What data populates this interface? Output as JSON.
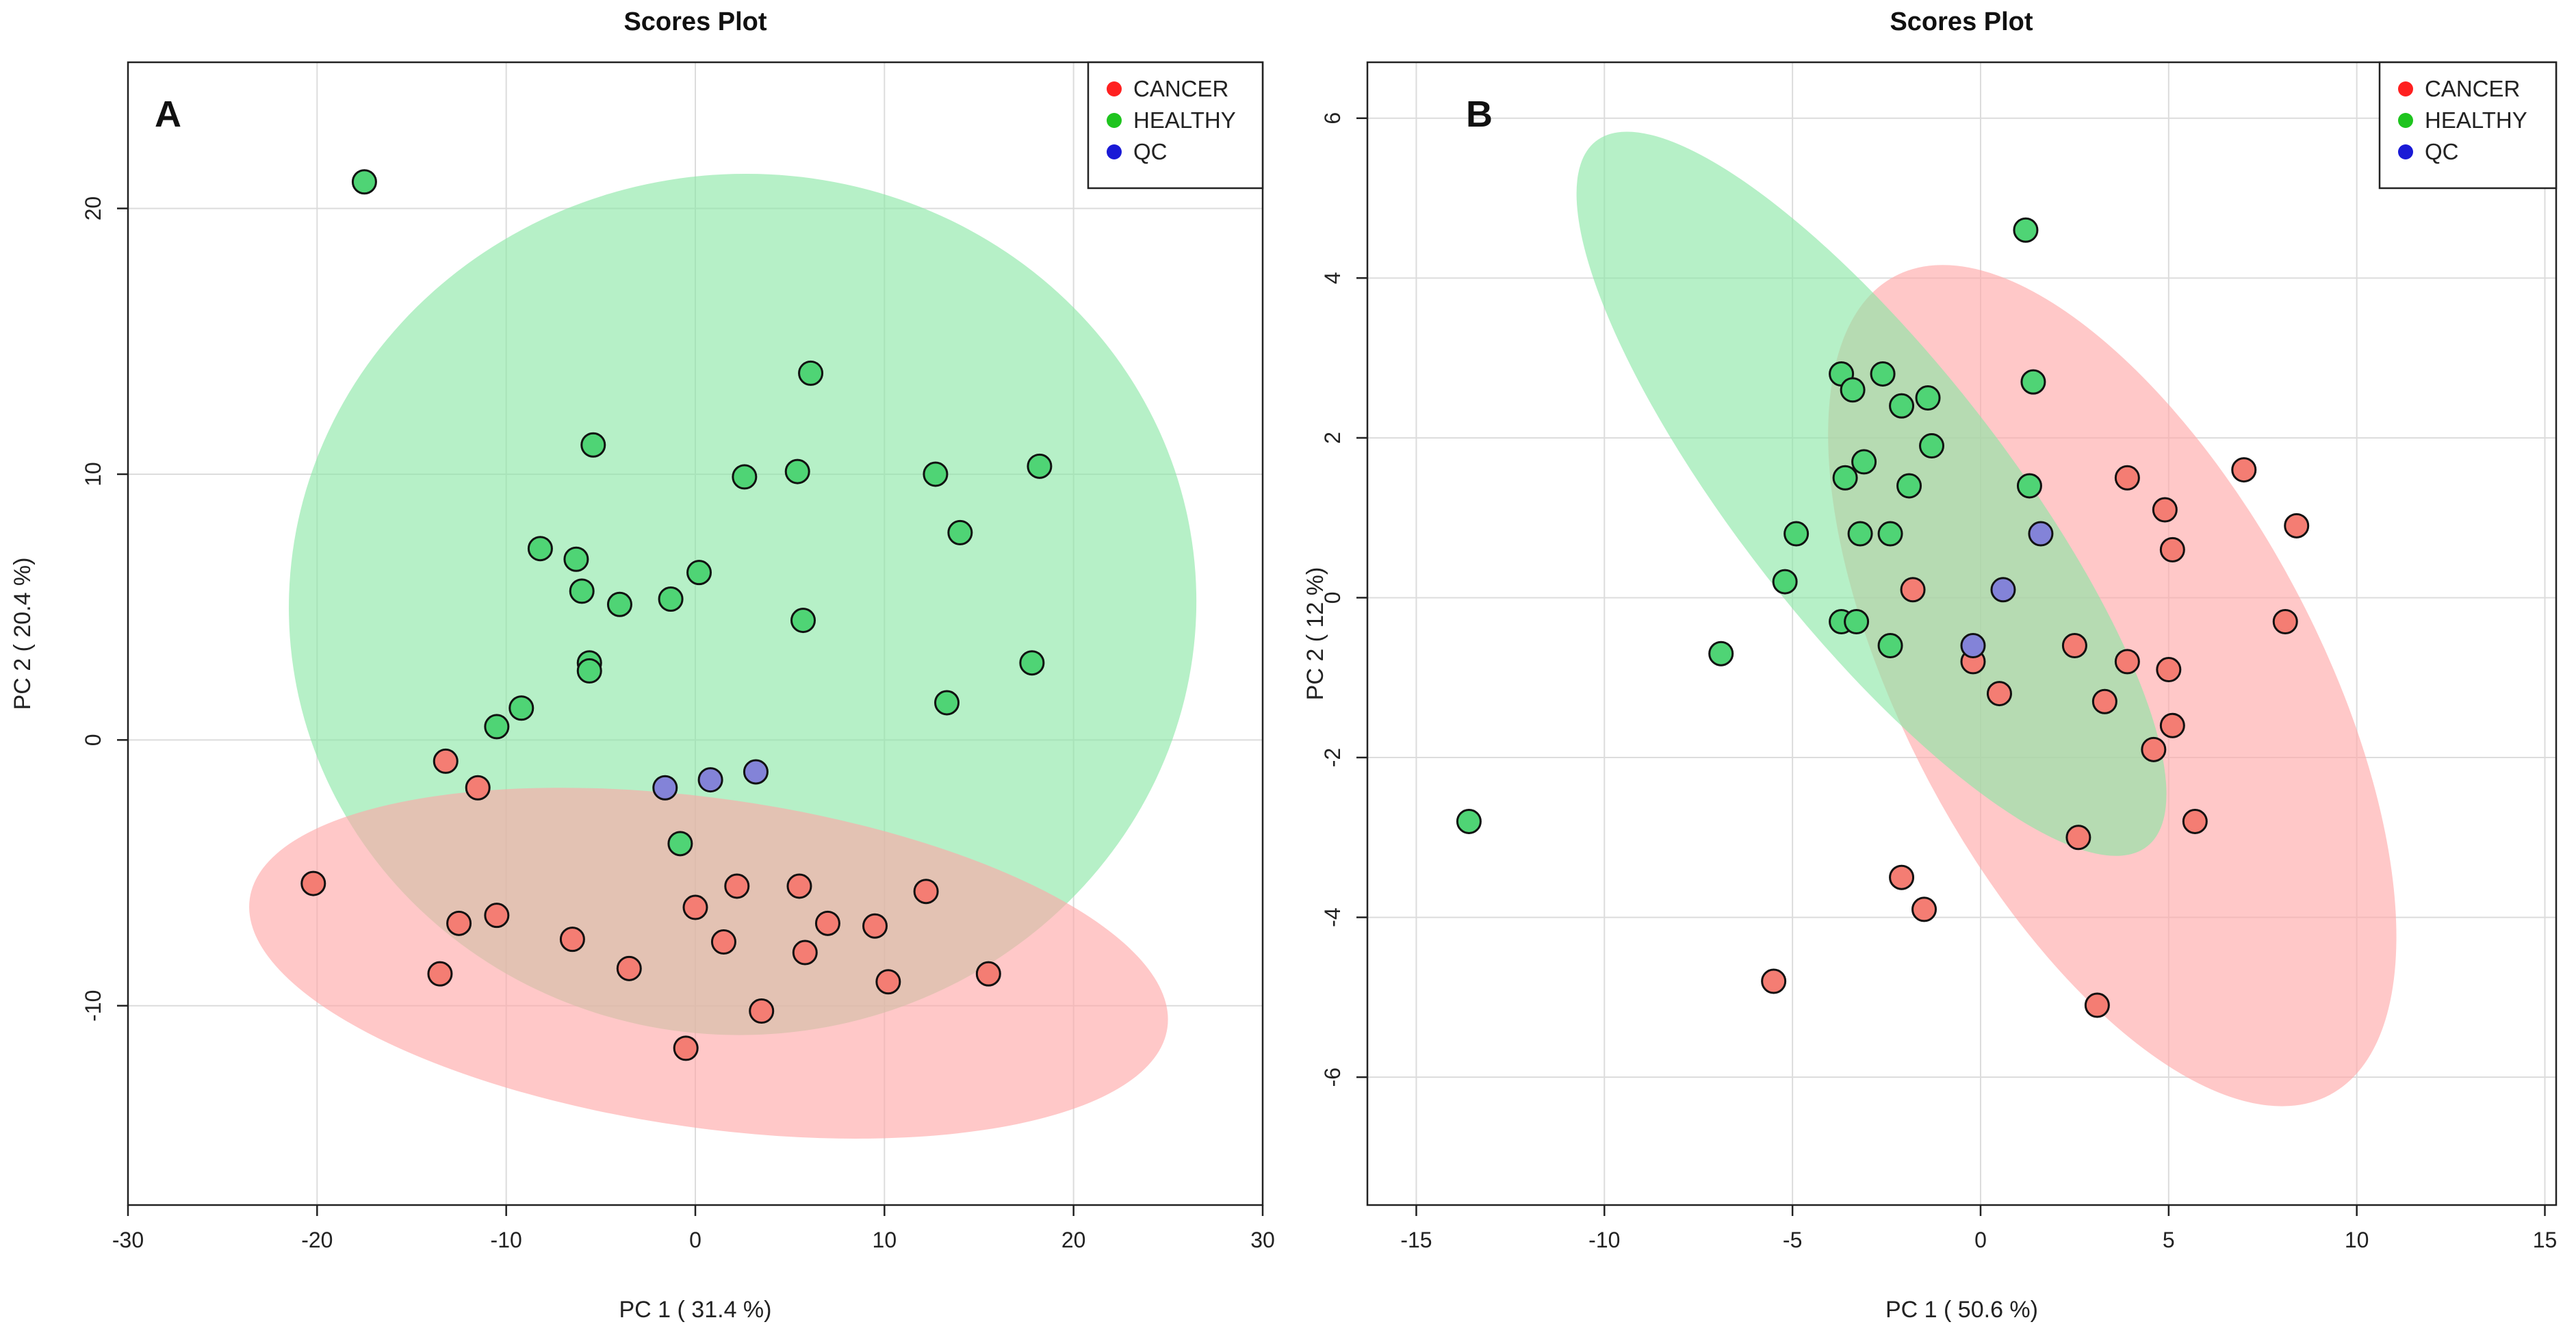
{
  "chart_data": [
    {
      "type": "scatter",
      "panel_label": "A",
      "title": "Scores Plot",
      "xlabel": "PC 1 ( 31.4 %)",
      "ylabel": "PC 2 ( 20.4 %)",
      "xlim": [
        -30,
        30
      ],
      "ylim": [
        -17.5,
        25.5
      ],
      "xticks": [
        -30,
        -20,
        -10,
        0,
        10,
        20,
        30
      ],
      "yticks": [
        -10,
        0,
        10,
        20
      ],
      "grid": true,
      "legend_position": "top-right",
      "legend": [
        {
          "label": "CANCER",
          "color": "#ff2020"
        },
        {
          "label": "HEALTHY",
          "color": "#1ec41e"
        },
        {
          "label": "QC",
          "color": "#1a1ad6"
        }
      ],
      "ellipses": [
        {
          "series": "HEALTHY",
          "cx": 2.5,
          "cy": 5.1,
          "rx": 24,
          "ry": 16.2,
          "angle": 4,
          "color": "#89e6a4"
        },
        {
          "series": "CANCER",
          "cx": 0.7,
          "cy": -8.4,
          "rx": 24.5,
          "ry": 6.2,
          "angle": -8,
          "color": "#ffa7a7"
        }
      ],
      "series": [
        {
          "name": "CANCER",
          "fill": "#f47d73",
          "points": [
            [
              -20.2,
              -5.4
            ],
            [
              -13.5,
              -8.8
            ],
            [
              -13.2,
              -0.8
            ],
            [
              -12.5,
              -6.9
            ],
            [
              -11.5,
              -1.8
            ],
            [
              -10.5,
              -6.6
            ],
            [
              -6.5,
              -7.5
            ],
            [
              -3.5,
              -8.6
            ],
            [
              -0.5,
              -11.6
            ],
            [
              0,
              -6.3
            ],
            [
              1.5,
              -7.6
            ],
            [
              2.2,
              -5.5
            ],
            [
              3.5,
              -10.2
            ],
            [
              5.5,
              -5.5
            ],
            [
              5.8,
              -8.0
            ],
            [
              7.0,
              -6.9
            ],
            [
              9.5,
              -7.0
            ],
            [
              10.2,
              -9.1
            ],
            [
              12.2,
              -5.7
            ],
            [
              15.5,
              -8.8
            ]
          ]
        },
        {
          "name": "HEALTHY",
          "fill": "#4fd475",
          "points": [
            [
              -17.5,
              21.0
            ],
            [
              -10.5,
              0.5
            ],
            [
              -9.2,
              1.2
            ],
            [
              -8.2,
              7.2
            ],
            [
              -6.3,
              6.8
            ],
            [
              -6.0,
              5.6
            ],
            [
              -5.6,
              2.9
            ],
            [
              -5.6,
              2.6
            ],
            [
              -5.4,
              11.1
            ],
            [
              -4.0,
              5.1
            ],
            [
              -1.3,
              5.3
            ],
            [
              -0.8,
              -3.9
            ],
            [
              0.2,
              6.3
            ],
            [
              2.6,
              9.9
            ],
            [
              5.4,
              10.1
            ],
            [
              5.7,
              4.5
            ],
            [
              6.1,
              13.8
            ],
            [
              12.7,
              10.0
            ],
            [
              13.3,
              1.4
            ],
            [
              14.0,
              7.8
            ],
            [
              17.8,
              2.9
            ],
            [
              18.2,
              10.3
            ]
          ]
        },
        {
          "name": "QC",
          "fill": "#8383d8",
          "points": [
            [
              -1.6,
              -1.8
            ],
            [
              0.8,
              -1.5
            ],
            [
              3.2,
              -1.2
            ]
          ]
        }
      ]
    },
    {
      "type": "scatter",
      "panel_label": "B",
      "title": "Scores Plot",
      "xlabel": "PC 1 ( 50.6 %)",
      "ylabel": "PC 2 ( 12 %)",
      "xlim": [
        -16.3,
        15.3
      ],
      "ylim": [
        -7.6,
        6.7
      ],
      "xticks": [
        -15,
        -10,
        -5,
        0,
        5,
        10,
        15
      ],
      "yticks": [
        -6,
        -4,
        -2,
        0,
        2,
        4,
        6
      ],
      "grid": true,
      "legend_position": "top-right",
      "legend": [
        {
          "label": "CANCER",
          "color": "#ff2020"
        },
        {
          "label": "HEALTHY",
          "color": "#1ec41e"
        },
        {
          "label": "QC",
          "color": "#1a1ad6"
        }
      ],
      "ellipses": [
        {
          "series": "CANCER",
          "cx": 3.5,
          "cy": -1.1,
          "rx": 5.5,
          "ry": 5.8,
          "angle": 28,
          "color": "#ffa7a7"
        },
        {
          "series": "HEALTHY",
          "cx": -2.9,
          "cy": 1.3,
          "rx": 3.55,
          "ry": 5.6,
          "angle": 38,
          "color": "#89e6a4"
        }
      ],
      "series": [
        {
          "name": "CANCER",
          "fill": "#f47d73",
          "points": [
            [
              -5.5,
              -4.8
            ],
            [
              -2.1,
              -3.5
            ],
            [
              -1.8,
              0.1
            ],
            [
              -1.5,
              -3.9
            ],
            [
              -0.2,
              -0.8
            ],
            [
              0.5,
              -1.2
            ],
            [
              2.5,
              -0.6
            ],
            [
              2.6,
              -3.0
            ],
            [
              3.3,
              -1.3
            ],
            [
              3.9,
              1.5
            ],
            [
              3.9,
              -0.8
            ],
            [
              3.1,
              -5.1
            ],
            [
              4.6,
              -1.9
            ],
            [
              4.9,
              1.1
            ],
            [
              5.0,
              -0.9
            ],
            [
              5.1,
              -1.6
            ],
            [
              5.1,
              0.6
            ],
            [
              5.7,
              -2.8
            ],
            [
              7.0,
              1.6
            ],
            [
              8.1,
              -0.3
            ],
            [
              8.4,
              0.9
            ]
          ]
        },
        {
          "name": "HEALTHY",
          "fill": "#4fd475",
          "points": [
            [
              -13.6,
              -2.8
            ],
            [
              -6.9,
              -0.7
            ],
            [
              -5.2,
              0.2
            ],
            [
              -4.9,
              0.8
            ],
            [
              -3.7,
              2.8
            ],
            [
              -3.6,
              1.5
            ],
            [
              -3.7,
              -0.3
            ],
            [
              -3.4,
              2.6
            ],
            [
              -3.3,
              -0.3
            ],
            [
              -3.2,
              0.8
            ],
            [
              -3.1,
              1.7
            ],
            [
              -2.6,
              2.8
            ],
            [
              -2.4,
              0.8
            ],
            [
              -2.4,
              -0.6
            ],
            [
              -2.1,
              2.4
            ],
            [
              -1.9,
              1.4
            ],
            [
              -1.4,
              2.5
            ],
            [
              -1.3,
              1.9
            ],
            [
              1.2,
              4.6
            ],
            [
              1.3,
              1.4
            ],
            [
              1.4,
              2.7
            ]
          ]
        },
        {
          "name": "QC",
          "fill": "#8383d8",
          "points": [
            [
              -0.2,
              -0.6
            ],
            [
              0.6,
              0.1
            ],
            [
              1.6,
              0.8
            ]
          ]
        }
      ]
    }
  ]
}
